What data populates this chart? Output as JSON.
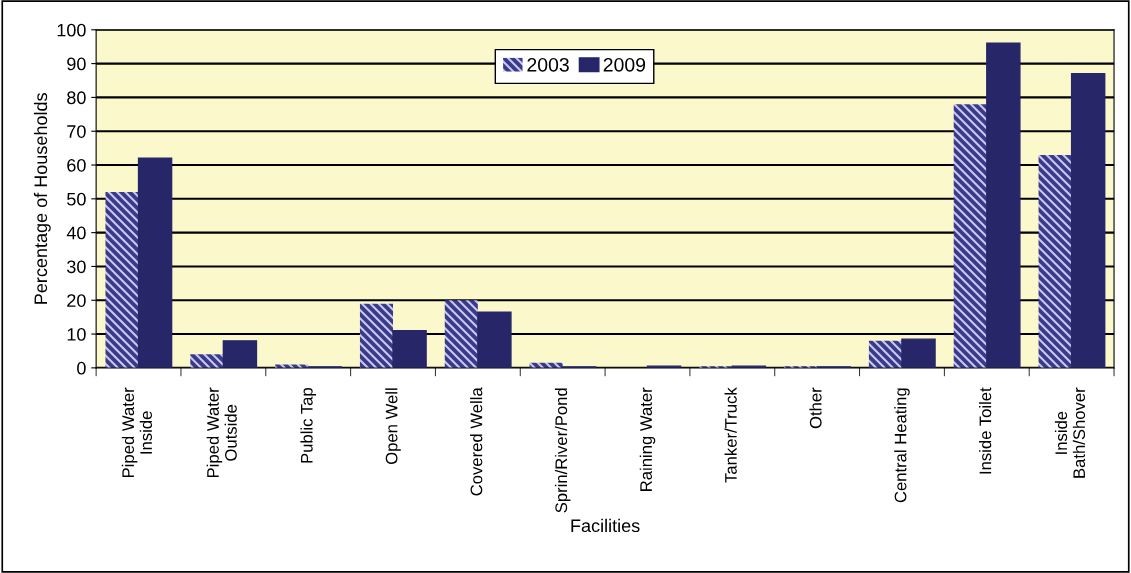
{
  "chart_data": {
    "type": "bar",
    "xlabel": "Facilities",
    "ylabel": "Percentage of Households",
    "categories": [
      "Piped Water\nInside",
      "Piped Water\nOutside",
      "Public Tap",
      "Open Well",
      "Covered Wella",
      "Sprin/River/Pond",
      "Raining Water",
      "Tanker/Truck",
      "Other",
      "Central Heating",
      "Inside Toilet",
      "Inside\nBath/Shover"
    ],
    "series": [
      {
        "name": "2003",
        "color": "#3a3a8c",
        "values": [
          52,
          4,
          1,
          19,
          20,
          1.5,
          0,
          0.5,
          0.5,
          8,
          78,
          63
        ]
      },
      {
        "name": "2009",
        "color": "#262668",
        "values": [
          62,
          8,
          0.3,
          11,
          16.5,
          0.3,
          0.5,
          0.5,
          0.3,
          8.5,
          96,
          87
        ]
      }
    ],
    "ylim": [
      0,
      100
    ],
    "yticks": [
      0,
      10,
      20,
      30,
      40,
      50,
      60,
      70,
      80,
      90,
      100
    ],
    "grid": "y",
    "legend": "top"
  }
}
